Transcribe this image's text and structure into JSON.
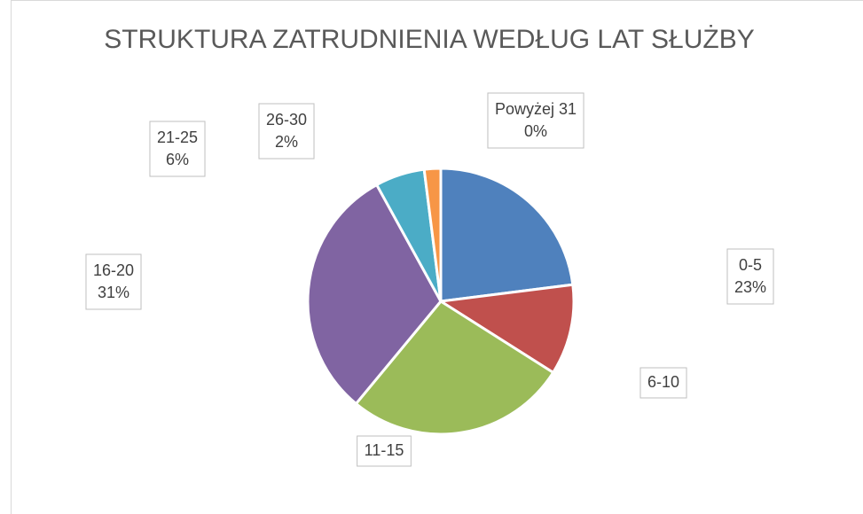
{
  "chart_data": {
    "type": "pie",
    "title": "STRUKTURA ZATRUDNIENIA WEDŁUG LAT SŁUŻBY",
    "categories": [
      "0-5",
      "6-10",
      "11-15",
      "16-20",
      "21-25",
      "26-30",
      "Powyżej 31"
    ],
    "values": [
      23,
      11,
      27,
      31,
      6,
      2,
      0
    ],
    "value_labels": [
      "23%",
      null,
      null,
      "31%",
      "6%",
      "2%",
      "0%"
    ],
    "colors": [
      "#4f81bd",
      "#c0504d",
      "#9bbb59",
      "#8064a2",
      "#4bacc6",
      "#f79646",
      "#2c4d75"
    ]
  }
}
